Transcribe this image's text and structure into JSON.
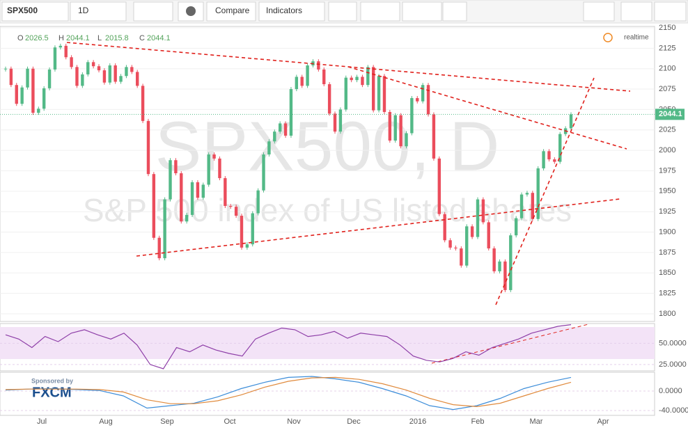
{
  "toolbar": {
    "symbol": "SPX500",
    "interval": "1D",
    "compare": "Compare",
    "indicators": "Indicators"
  },
  "realtime": "realtime",
  "sponsor": "Sponsored by",
  "sponsor_name": "FXCM",
  "chart_data": [
    {
      "type": "candlestick",
      "title": "SPX500, D",
      "subtitle": "S&P 500 index of US listed shares",
      "legend": [
        {
          "key": "O",
          "value": 2026.5
        },
        {
          "key": "H",
          "value": 2044.1
        },
        {
          "key": "L",
          "value": 2015.8
        },
        {
          "key": "C",
          "value": 2044.1
        }
      ],
      "last_price": 2044.1,
      "up_color": "#53b987",
      "down_color": "#eb4d5c",
      "close": [
        2100,
        2080,
        2057,
        2077,
        2100,
        2046,
        2051,
        2076,
        2099,
        2126,
        2128,
        2114,
        2102,
        2079,
        2093,
        2108,
        2103,
        2098,
        2083,
        2104,
        2084,
        2091,
        2102,
        2096,
        2079,
        2036,
        1971,
        1893,
        1868,
        1940,
        1988,
        1972,
        1913,
        1921,
        1961,
        1942,
        1958,
        1995,
        1990,
        1966,
        1932,
        1931,
        1920,
        1881,
        1885,
        1923,
        1951,
        1995,
        2011,
        2023,
        2033,
        2018,
        2075,
        2090,
        2079,
        2104,
        2109,
        2099,
        2081,
        2045,
        2023,
        2050,
        2089,
        2086,
        2090,
        2080,
        2102,
        2049,
        2091,
        2047,
        2012,
        2043,
        2005,
        2021,
        2064,
        2060,
        2080,
        2044,
        1990,
        1922,
        1890,
        1881,
        1880,
        1859,
        1907,
        1894,
        1940,
        1912,
        1880,
        1852,
        1864,
        1829,
        1896,
        1917,
        1946,
        1948,
        1916,
        1978,
        1999,
        1989,
        1986,
        2020,
        2027,
        2044.1
      ],
      "ylim": [
        1790.6,
        2151.7
      ],
      "yticks": [
        1800,
        1825,
        1850,
        1875,
        1900,
        1925,
        1950,
        1975,
        2000,
        2025,
        2050,
        2075,
        2100,
        2125,
        2150
      ],
      "x_labels": [
        "Jul",
        "Aug",
        "Sep",
        "Oct",
        "Nov",
        "Dec",
        "2016",
        "Feb",
        "Mar",
        "Apr"
      ]
    },
    {
      "type": "line",
      "ylim": [
        17.5,
        73.3
      ],
      "yticks": [
        {
          "value": 50,
          "label": "50.0000"
        },
        {
          "value": 25,
          "label": "25.0000"
        }
      ],
      "series": [
        {
          "color": "#8e3fa8",
          "values": [
            60,
            55,
            45,
            58,
            52,
            62,
            66,
            60,
            55,
            62,
            48,
            25,
            20,
            45,
            40,
            48,
            42,
            38,
            35,
            55,
            62,
            68,
            66,
            58,
            60,
            64,
            56,
            62,
            60,
            58,
            48,
            35,
            30,
            28,
            32,
            40,
            36,
            45,
            50,
            55,
            62,
            66,
            70,
            72
          ]
        }
      ]
    },
    {
      "type": "line",
      "ylim": [
        -50,
        38.6
      ],
      "yticks": [
        {
          "value": 0,
          "label": "0.0000"
        },
        {
          "value": -40,
          "label": "-40.0000"
        }
      ],
      "series": [
        {
          "color": "#3c8dd9",
          "values": [
            2,
            4,
            5,
            3,
            1,
            -10,
            -35,
            -30,
            -25,
            -12,
            5,
            18,
            28,
            30,
            25,
            18,
            5,
            -10,
            -30,
            -38,
            -30,
            -15,
            5,
            18,
            28
          ]
        },
        {
          "color": "#e08a3c",
          "values": [
            3,
            4,
            4,
            4,
            3,
            -2,
            -18,
            -26,
            -26,
            -20,
            -8,
            8,
            20,
            27,
            28,
            24,
            15,
            2,
            -15,
            -28,
            -32,
            -25,
            -10,
            5,
            18
          ]
        }
      ]
    }
  ]
}
